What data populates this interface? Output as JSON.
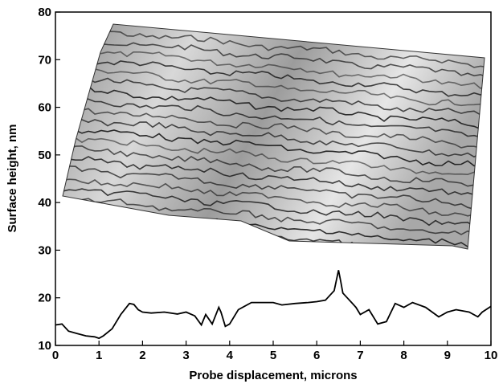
{
  "chart_data": {
    "type": "line",
    "title": "",
    "xlabel": "Probe displacement, microns",
    "ylabel": "Surface height, nm",
    "xlim": [
      0,
      10
    ],
    "ylim": [
      10,
      80
    ],
    "x_ticks": [
      "0",
      "1",
      "2",
      "3",
      "4",
      "5",
      "6",
      "7",
      "8",
      "9",
      "10"
    ],
    "y_ticks": [
      "10",
      "20",
      "30",
      "40",
      "50",
      "60",
      "70",
      "80"
    ],
    "grid": false,
    "series": [
      {
        "x": [
          0.0,
          0.15,
          0.3,
          0.5,
          0.7,
          0.9,
          1.0,
          1.1,
          1.3,
          1.5,
          1.7,
          1.8,
          1.9,
          2.0,
          2.2,
          2.5,
          2.8,
          3.0,
          3.2,
          3.35,
          3.45,
          3.6,
          3.75,
          3.8,
          3.9,
          4.0,
          4.2,
          4.5,
          5.0,
          5.2,
          5.5,
          5.8,
          6.0,
          6.2,
          6.4,
          6.5,
          6.55,
          6.6,
          6.7,
          6.8,
          6.9,
          7.0,
          7.2,
          7.4,
          7.6,
          7.8,
          8.0,
          8.2,
          8.5,
          8.8,
          9.0,
          9.2,
          9.5,
          9.7,
          9.8,
          10.0
        ],
        "y": [
          14.3,
          14.5,
          13.0,
          12.5,
          12.0,
          11.8,
          11.5,
          12.0,
          13.5,
          16.5,
          18.8,
          18.6,
          17.5,
          17.0,
          16.8,
          17.0,
          16.6,
          17.0,
          16.2,
          14.3,
          16.5,
          14.5,
          18.0,
          17.0,
          14.0,
          14.5,
          17.5,
          19.0,
          19.0,
          18.5,
          18.8,
          19.0,
          19.2,
          19.5,
          21.5,
          25.8,
          23.5,
          21.0,
          20.0,
          19.0,
          18.0,
          16.5,
          17.5,
          14.5,
          15.0,
          18.8,
          18.0,
          19.0,
          18.0,
          16.0,
          17.0,
          17.5,
          17.0,
          16.0,
          17.0,
          18.2
        ]
      }
    ],
    "inset_image": "3d-surface-topography-render"
  }
}
